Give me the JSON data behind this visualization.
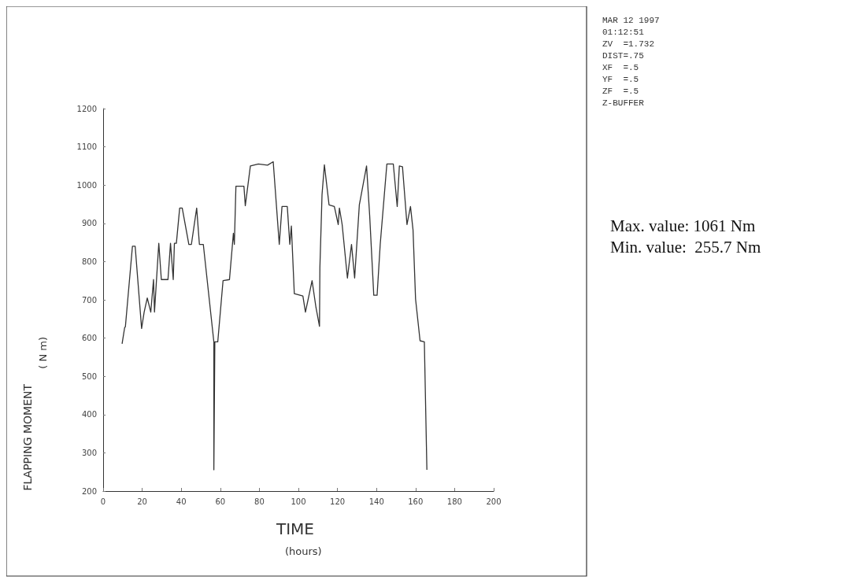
{
  "chart_data": {
    "type": "line",
    "xlabel": "TIME\n(hours)",
    "ylabel": "FLAPPING MOMENT\n( N m)",
    "x": [
      9.7,
      11,
      11.4,
      15,
      16.4,
      19.7,
      21,
      22.6,
      24.4,
      25.8,
      26.3,
      28.5,
      29.8,
      33.2,
      34.5,
      35.9,
      36.5,
      37.5,
      39.2,
      40.5,
      43.9,
      45.2,
      47.9,
      49.3,
      51.3,
      56.7,
      56.7,
      57.2,
      58.7,
      61.4,
      64.7,
      66.7,
      67.2,
      68,
      72.1,
      72.8,
      75.4,
      79.5,
      84.2,
      87.1,
      90.2,
      91.6,
      94.3,
      95.6,
      96.4,
      97.9,
      102.3,
      103.6,
      107,
      109,
      110.8,
      111,
      112.1,
      113.3,
      115.7,
      118.4,
      120.4,
      121,
      122.4,
      125.1,
      127.2,
      128.8,
      131.2,
      134.9,
      136.5,
      138.6,
      140.3,
      141.9,
      145.3,
      148.6,
      150.6,
      151.7,
      153.3,
      155.6,
      157.4,
      158.7,
      160,
      162.3,
      164.5,
      165.8
    ],
    "series": [
      {
        "color": "#333333",
        "values": [
          585,
          627,
          630,
          840,
          840,
          625,
          668,
          705,
          668,
          753,
          668,
          848,
          753,
          753,
          848,
          753,
          848,
          848,
          940,
          940,
          845,
          845,
          940,
          845,
          845,
          590,
          255.7,
          590,
          590,
          750,
          753,
          874,
          845,
          997,
          997,
          946,
          1050,
          1055,
          1052,
          1061,
          845,
          944,
          944,
          845,
          893,
          716,
          710,
          668,
          750,
          680,
          631,
          784,
          975,
          1053,
          948,
          944,
          897,
          940,
          897,
          757,
          845,
          757,
          948,
          1050,
          920,
          712,
          712,
          845,
          1055,
          1055,
          944,
          1050,
          1048,
          897,
          944,
          883,
          702,
          593,
          590,
          255.7
        ]
      }
    ],
    "xlim": [
      0,
      200
    ],
    "xticks": [
      0,
      20,
      40,
      60,
      80,
      100,
      120,
      140,
      160,
      180,
      200
    ],
    "ylim": [
      200,
      1200
    ],
    "yticks": [
      200,
      300,
      400,
      500,
      600,
      700,
      800,
      900,
      1000,
      1100,
      1200
    ],
    "grid": false,
    "marker": "none",
    "line_style": "solid",
    "annotations": [
      "MAR 12 1997",
      "01:12:51",
      "ZV  =1.732",
      "DIST=.75",
      "XF  =.5",
      "YF  =.5",
      "ZF  =.5",
      "Z-BUFFER",
      "Max. value: 1061 Nm",
      "Min. value:  255.7 Nm"
    ]
  }
}
